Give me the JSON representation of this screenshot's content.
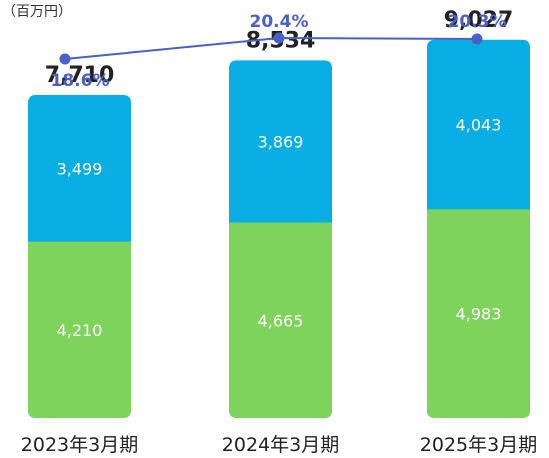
{
  "unit_label": "（百万円）",
  "colors": {
    "bottom": "#7ed35a",
    "top": "#08aee3",
    "line": "#4a60c8"
  },
  "chart_data": {
    "type": "bar",
    "stacked": true,
    "categories": [
      "2023年3月期",
      "2024年3月期",
      "2025年3月期"
    ],
    "series": [
      {
        "values": [
          4210,
          4665,
          4983
        ]
      },
      {
        "values": [
          3499,
          3869,
          4043
        ]
      }
    ],
    "totals": [
      7710,
      8534,
      9027
    ],
    "total_labels": [
      "7,710",
      "8,534",
      "9,027"
    ],
    "bottom_labels": [
      "4,210",
      "4,665",
      "4,983"
    ],
    "top_labels": [
      "3,499",
      "3,869",
      "4,043"
    ],
    "line": {
      "type": "line",
      "values": [
        18.6,
        20.4,
        20.3
      ],
      "labels": [
        "18.6%",
        "20.4%",
        "20.3%"
      ]
    },
    "ylim": [
      0,
      10000
    ]
  }
}
